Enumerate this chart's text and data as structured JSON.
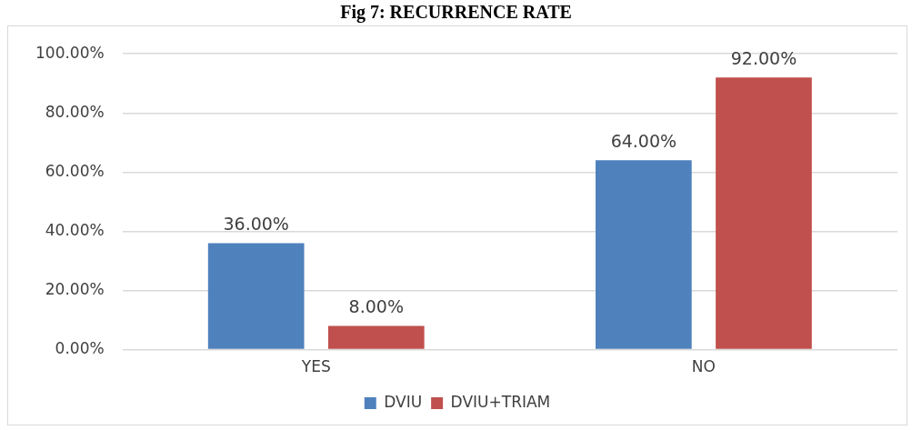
{
  "chart_data": {
    "type": "bar",
    "title": "Fig 7: RECURRENCE RATE",
    "categories": [
      "YES",
      "NO"
    ],
    "series": [
      {
        "name": "DVIU",
        "color": "#4f81bd",
        "values": [
          36,
          64
        ],
        "value_labels": [
          "36.00%",
          "64.00%"
        ]
      },
      {
        "name": "DVIU+TRIAM",
        "color": "#c0504d",
        "values": [
          8,
          92
        ],
        "value_labels": [
          "8.00%",
          "92.00%"
        ]
      }
    ],
    "ylim": [
      0,
      100
    ],
    "yticks": [
      {
        "value": 0,
        "label": "0.00%"
      },
      {
        "value": 20,
        "label": "20.00%"
      },
      {
        "value": 40,
        "label": "40.00%"
      },
      {
        "value": 60,
        "label": "60.00%"
      },
      {
        "value": 80,
        "label": "80.00%"
      },
      {
        "value": 100,
        "label": "100.00%"
      }
    ],
    "grid": "y",
    "legend": "bottom"
  }
}
